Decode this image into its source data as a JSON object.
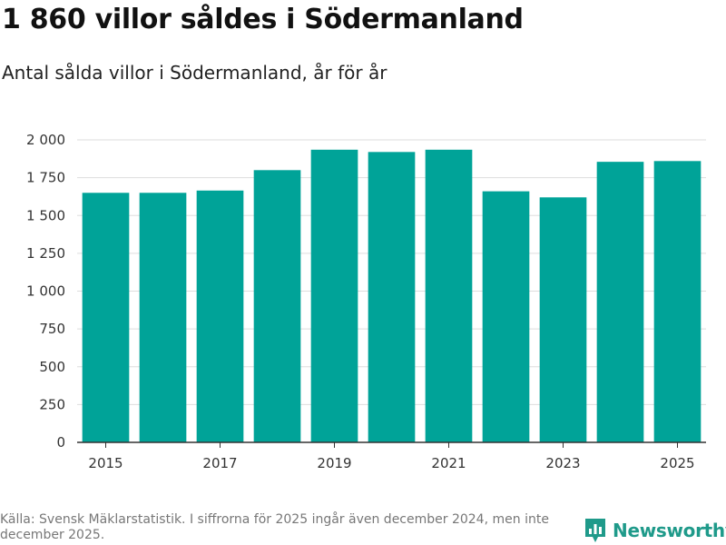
{
  "header": {
    "title": "1 860 villor såldes i Södermanland",
    "subtitle": "Antal sålda villor i Södermanland, år för år"
  },
  "footer": {
    "source": "Källa: Svensk Mäklarstatistik. I siffrorna för 2025 ingår även december 2024, men inte december 2025.",
    "brand": "Newsworthy"
  },
  "colors": {
    "bar": "#00a398",
    "grid": "#dddddd",
    "axis": "#333333",
    "brand": "#1f9a8a"
  },
  "chart_data": {
    "type": "bar",
    "title": "1 860 villor såldes i Södermanland",
    "subtitle": "Antal sålda villor i Södermanland, år för år",
    "categories": [
      "2015",
      "2016",
      "2017",
      "2018",
      "2019",
      "2020",
      "2021",
      "2022",
      "2023",
      "2024",
      "2025"
    ],
    "values": [
      1650,
      1650,
      1665,
      1800,
      1935,
      1920,
      1935,
      1660,
      1620,
      1855,
      1860
    ],
    "x_tick_labels": [
      "2015",
      "2017",
      "2019",
      "2021",
      "2023",
      "2025"
    ],
    "y_ticks": [
      0,
      250,
      500,
      750,
      1000,
      1250,
      1500,
      1750,
      2000
    ],
    "y_tick_labels": [
      "0",
      "250",
      "500",
      "750",
      "1 000",
      "1 250",
      "1 500",
      "1 750",
      "2 000"
    ],
    "ylim": [
      0,
      2000
    ],
    "xlabel": "",
    "ylabel": "",
    "grid": true,
    "legend": "none"
  }
}
